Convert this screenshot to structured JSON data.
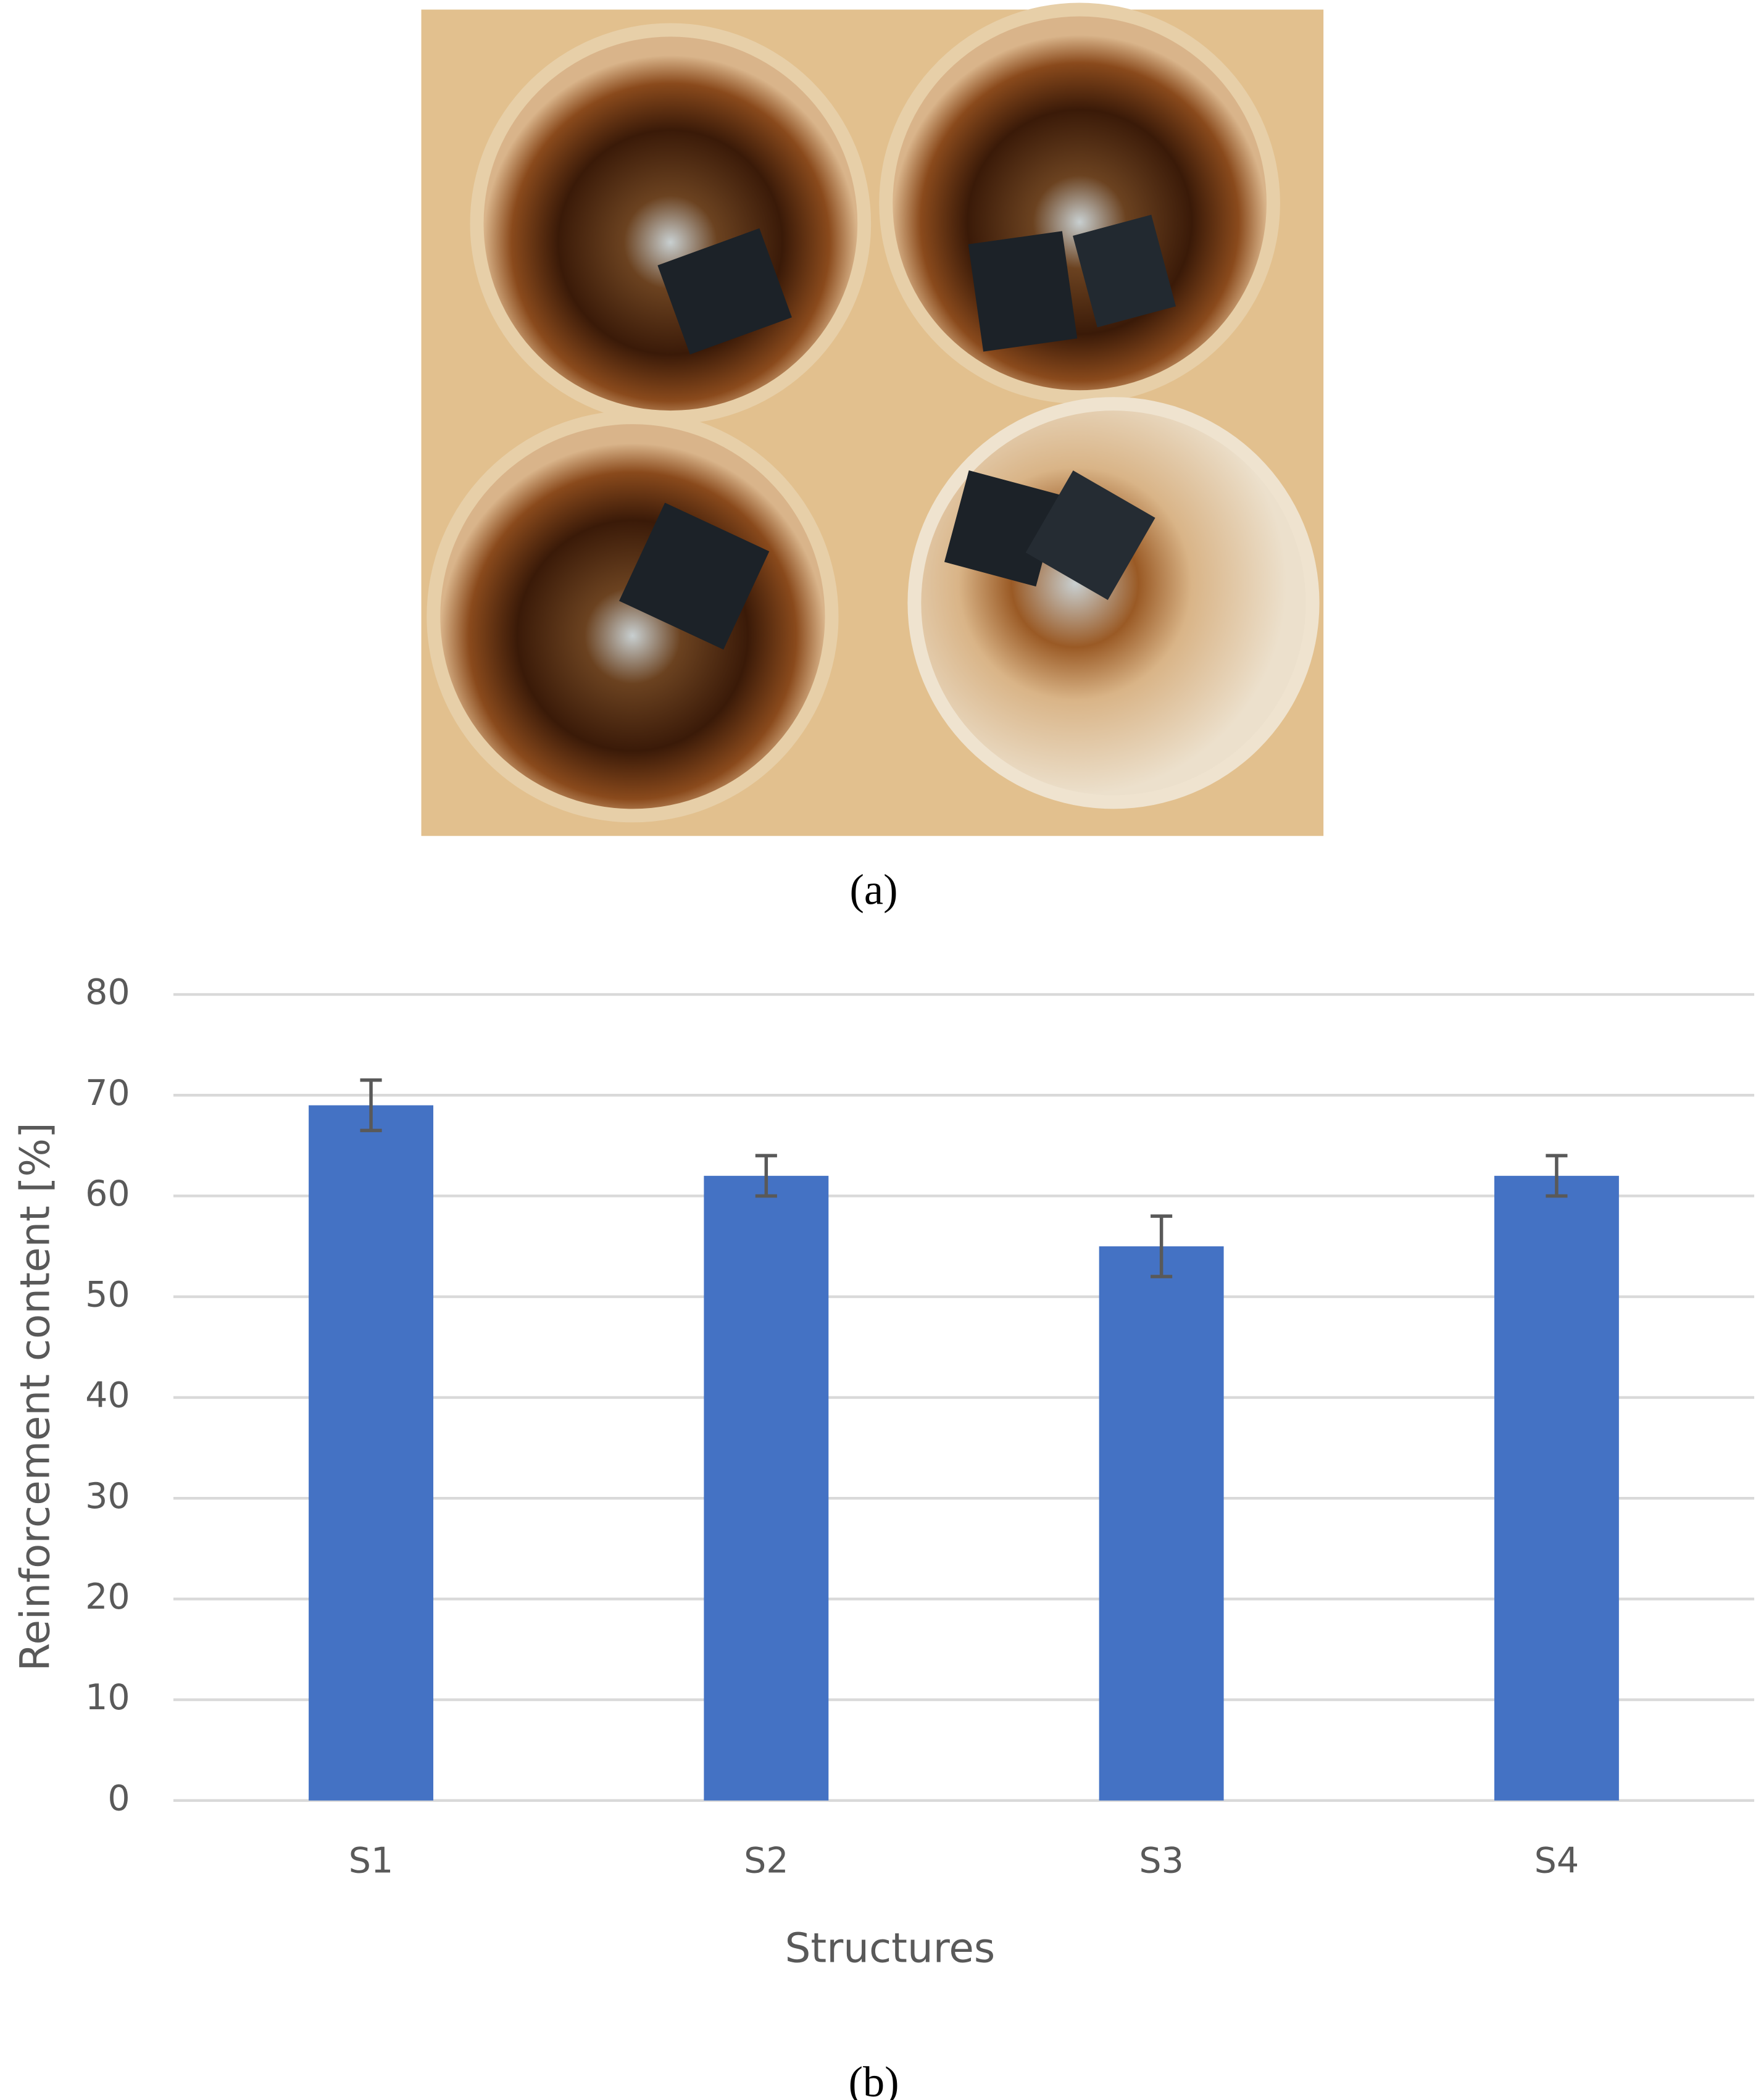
{
  "panel_a": {
    "caption": "(a)"
  },
  "chart_data": {
    "type": "bar",
    "caption": "(b)",
    "x_label": "Structures",
    "y_label": "Reinforcement content [%]",
    "categories": [
      "S1",
      "S2",
      "S3",
      "S4"
    ],
    "values": [
      69,
      62,
      55,
      62
    ],
    "errors": [
      2.5,
      2,
      3,
      2
    ],
    "color": "#4472c4",
    "ylim": [
      0,
      80
    ],
    "yticks": [
      0,
      10,
      20,
      30,
      40,
      50,
      60,
      70,
      80
    ],
    "grid": true
  }
}
